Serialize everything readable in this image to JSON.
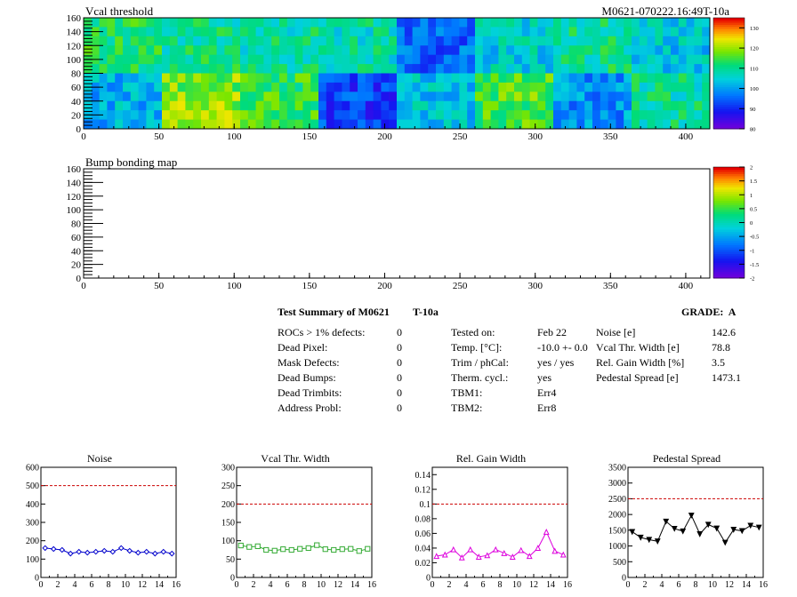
{
  "run_id": "M0621-070222.16:49T-10a",
  "maps": [
    {
      "title": "Vcal threshold",
      "x_ticks": [
        "0",
        "50",
        "100",
        "150",
        "200",
        "250",
        "300",
        "350",
        "400"
      ],
      "y_ticks": [
        "0",
        "20",
        "40",
        "60",
        "80",
        "100",
        "120",
        "140",
        "160"
      ],
      "z_ticks": [
        "80",
        "90",
        "100",
        "110",
        "120",
        "130"
      ],
      "z_range": [
        80,
        135
      ],
      "roc_mean_values": {
        "top_row": [
          112,
          110,
          109,
          108,
          95,
          105,
          110,
          104
        ],
        "bottom_row": [
          102,
          119,
          114,
          92,
          104,
          116,
          99,
          109
        ]
      }
    },
    {
      "title": "Bump bonding map",
      "x_ticks": [
        "0",
        "50",
        "100",
        "150",
        "200",
        "250",
        "300",
        "350",
        "400"
      ],
      "y_ticks": [
        "0",
        "20",
        "40",
        "60",
        "80",
        "100",
        "120",
        "140",
        "160"
      ],
      "z_ticks": [
        "-2",
        "-1.5",
        "-1",
        "-0.5",
        "0",
        "0.5",
        "1",
        "1.5",
        "2"
      ],
      "z_range": [
        -2,
        2
      ]
    }
  ],
  "summary": {
    "title": "Test Summary of M0621",
    "temp_label": "T-10a",
    "grade_label": "GRADE:",
    "grade_value": "A",
    "defects": [
      {
        "label": "ROCs > 1% defects:",
        "value": "0"
      },
      {
        "label": "Dead Pixel:",
        "value": "0"
      },
      {
        "label": "Mask Defects:",
        "value": "0"
      },
      {
        "label": "Dead Bumps:",
        "value": "0"
      },
      {
        "label": "Dead Trimbits:",
        "value": "0"
      },
      {
        "label": "Address Probl:",
        "value": "0"
      }
    ],
    "conditions": [
      {
        "label": "Tested on:",
        "value": "Feb 22"
      },
      {
        "label": "Temp. [°C]:",
        "value": "-10.0 +- 0.0"
      },
      {
        "label": "Trim / phCal:",
        "value": "yes / yes"
      },
      {
        "label": "Therm. cycl.:",
        "value": "yes"
      },
      {
        "label": "TBM1:",
        "value": "Err4"
      },
      {
        "label": "TBM2:",
        "value": "Err8"
      }
    ],
    "results": [
      {
        "label": "Noise [e]",
        "value": "142.6"
      },
      {
        "label": "Vcal Thr. Width [e]",
        "value": "78.8"
      },
      {
        "label": "Rel. Gain Width [%]",
        "value": "3.5"
      },
      {
        "label": "Pedestal Spread [e]",
        "value": "1473.1"
      }
    ]
  },
  "chart_data": [
    {
      "type": "line",
      "title": "Noise",
      "x": [
        0,
        1,
        2,
        3,
        4,
        5,
        6,
        7,
        8,
        9,
        10,
        11,
        12,
        13,
        14,
        15
      ],
      "values": [
        160,
        155,
        150,
        130,
        140,
        135,
        140,
        145,
        140,
        160,
        145,
        135,
        140,
        130,
        140,
        130
      ],
      "ylim": [
        0,
        600
      ],
      "xlim": [
        0,
        16
      ],
      "y_ticks": [
        "0",
        "100",
        "200",
        "300",
        "400",
        "500",
        "600"
      ],
      "x_ticks": [
        "0",
        "2",
        "4",
        "6",
        "8",
        "10",
        "12",
        "14",
        "16"
      ],
      "threshold": 500,
      "color": "#0000cc",
      "marker": "diamond"
    },
    {
      "type": "line",
      "title": "Vcal Thr. Width",
      "x": [
        0,
        1,
        2,
        3,
        4,
        5,
        6,
        7,
        8,
        9,
        10,
        11,
        12,
        13,
        14,
        15
      ],
      "values": [
        87,
        83,
        85,
        75,
        73,
        77,
        75,
        78,
        80,
        88,
        77,
        75,
        77,
        78,
        72,
        78
      ],
      "ylim": [
        0,
        300
      ],
      "xlim": [
        0,
        16
      ],
      "y_ticks": [
        "0",
        "50",
        "100",
        "150",
        "200",
        "250",
        "300"
      ],
      "x_ticks": [
        "0",
        "2",
        "4",
        "6",
        "8",
        "10",
        "12",
        "14",
        "16"
      ],
      "threshold": 200,
      "color": "#33aa33",
      "marker": "square"
    },
    {
      "type": "line",
      "title": "Rel. Gain Width",
      "x": [
        0,
        1,
        2,
        3,
        4,
        5,
        6,
        7,
        8,
        9,
        10,
        11,
        12,
        13,
        14,
        15
      ],
      "values": [
        0.029,
        0.031,
        0.038,
        0.027,
        0.038,
        0.028,
        0.03,
        0.038,
        0.033,
        0.028,
        0.037,
        0.029,
        0.04,
        0.062,
        0.036,
        0.031
      ],
      "ylim": [
        0,
        0.15
      ],
      "xlim": [
        0,
        16
      ],
      "y_ticks": [
        "0",
        "0.02",
        "0.04",
        "0.06",
        "0.08",
        "0.1",
        "0.12",
        "0.14"
      ],
      "x_ticks": [
        "0",
        "2",
        "4",
        "6",
        "8",
        "10",
        "12",
        "14",
        "16"
      ],
      "threshold": 0.1,
      "color": "#dd00dd",
      "marker": "triangle"
    },
    {
      "type": "line",
      "title": "Pedestal Spread",
      "x": [
        0,
        1,
        2,
        3,
        4,
        5,
        6,
        7,
        8,
        9,
        10,
        11,
        12,
        13,
        14,
        15
      ],
      "values": [
        1450,
        1270,
        1200,
        1150,
        1780,
        1550,
        1470,
        1970,
        1380,
        1680,
        1560,
        1110,
        1520,
        1480,
        1650,
        1590
      ],
      "ylim": [
        0,
        3500
      ],
      "xlim": [
        0,
        16
      ],
      "y_ticks": [
        "0",
        "500",
        "1000",
        "1500",
        "2000",
        "2500",
        "3000",
        "3500"
      ],
      "x_ticks": [
        "0",
        "2",
        "4",
        "6",
        "8",
        "10",
        "12",
        "14",
        "16"
      ],
      "threshold": 2500,
      "color": "#000000",
      "marker": "triangle-down"
    }
  ]
}
